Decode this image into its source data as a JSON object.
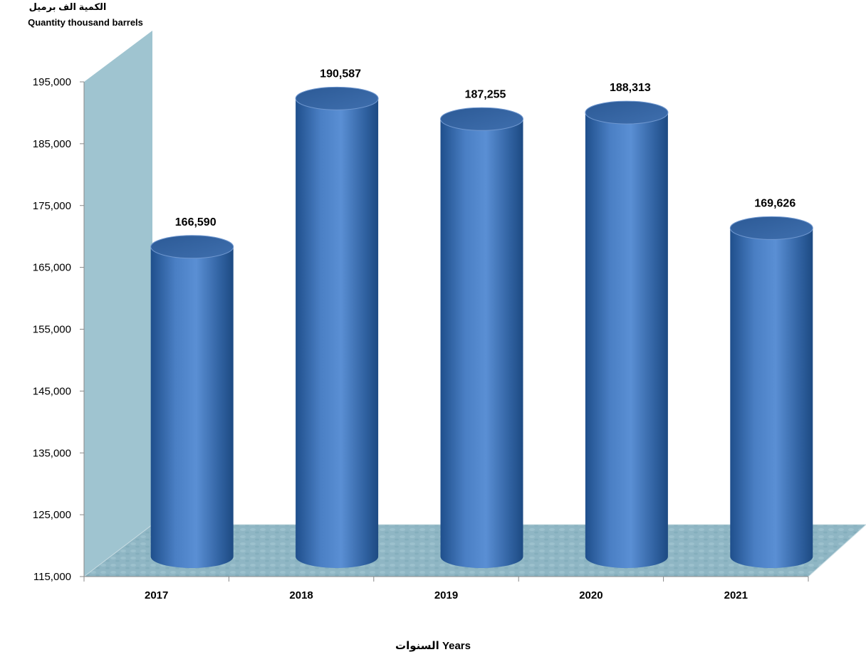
{
  "chart_data": {
    "type": "bar",
    "title": "",
    "ylabel_ar": "الكمية الف برميل",
    "ylabel_en": "Quantity thousand barrels",
    "xlabel": "السنوات Years",
    "categories": [
      "2017",
      "2018",
      "2019",
      "2020",
      "2021"
    ],
    "values": [
      166590,
      190587,
      187255,
      188313,
      169626
    ],
    "value_labels": [
      "166,590",
      "190,587",
      "187,255",
      "188,313",
      "169,626"
    ],
    "yticks": [
      "115,000",
      "125,000",
      "135,000",
      "145,000",
      "155,000",
      "165,000",
      "175,000",
      "185,000",
      "195,000"
    ],
    "ylim": [
      115000,
      195000
    ],
    "grid": false,
    "style": "3d-cylinder"
  },
  "colors": {
    "bar": "#4a7fc4",
    "bar_dark": "#1f4f8c",
    "bar_top": "#2f5f9f",
    "back_wall": "#9fc4d0",
    "floor": "#8fb6c4"
  }
}
